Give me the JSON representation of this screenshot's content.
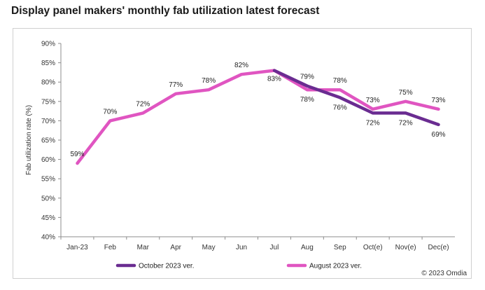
{
  "chart_data": {
    "type": "line",
    "title": "Display panel makers' monthly fab utilization latest forecast",
    "xlabel": "",
    "ylabel": "Fab utilization rate (%)",
    "ylim": [
      40,
      90
    ],
    "ytick_step": 5,
    "grid": false,
    "legend_position": "bottom",
    "categories": [
      "Jan-23",
      "Feb",
      "Mar",
      "Apr",
      "May",
      "Jun",
      "Jul",
      "Aug",
      "Sep",
      "Oct(e)",
      "Nov(e)",
      "Dec(e)"
    ],
    "series": [
      {
        "name": "October 2023 ver.",
        "color": "#6a2c91",
        "values": [
          null,
          null,
          null,
          null,
          null,
          null,
          83,
          79,
          76,
          72,
          72,
          69
        ],
        "labels": [
          "",
          "",
          "",
          "",
          "",
          "",
          "83%",
          "79%",
          "76%",
          "72%",
          "72%",
          "69%"
        ]
      },
      {
        "name": "August 2023 ver.",
        "color": "#e055c1",
        "values": [
          59,
          70,
          72,
          77,
          78,
          82,
          83,
          78,
          78,
          73,
          75,
          73
        ],
        "labels": [
          "59%",
          "70%",
          "72%",
          "77%",
          "78%",
          "82%",
          "",
          "78%",
          "78%",
          "73%",
          "75%",
          "73%"
        ]
      }
    ]
  },
  "footer": {
    "copyright": "© 2023 Omdia"
  }
}
